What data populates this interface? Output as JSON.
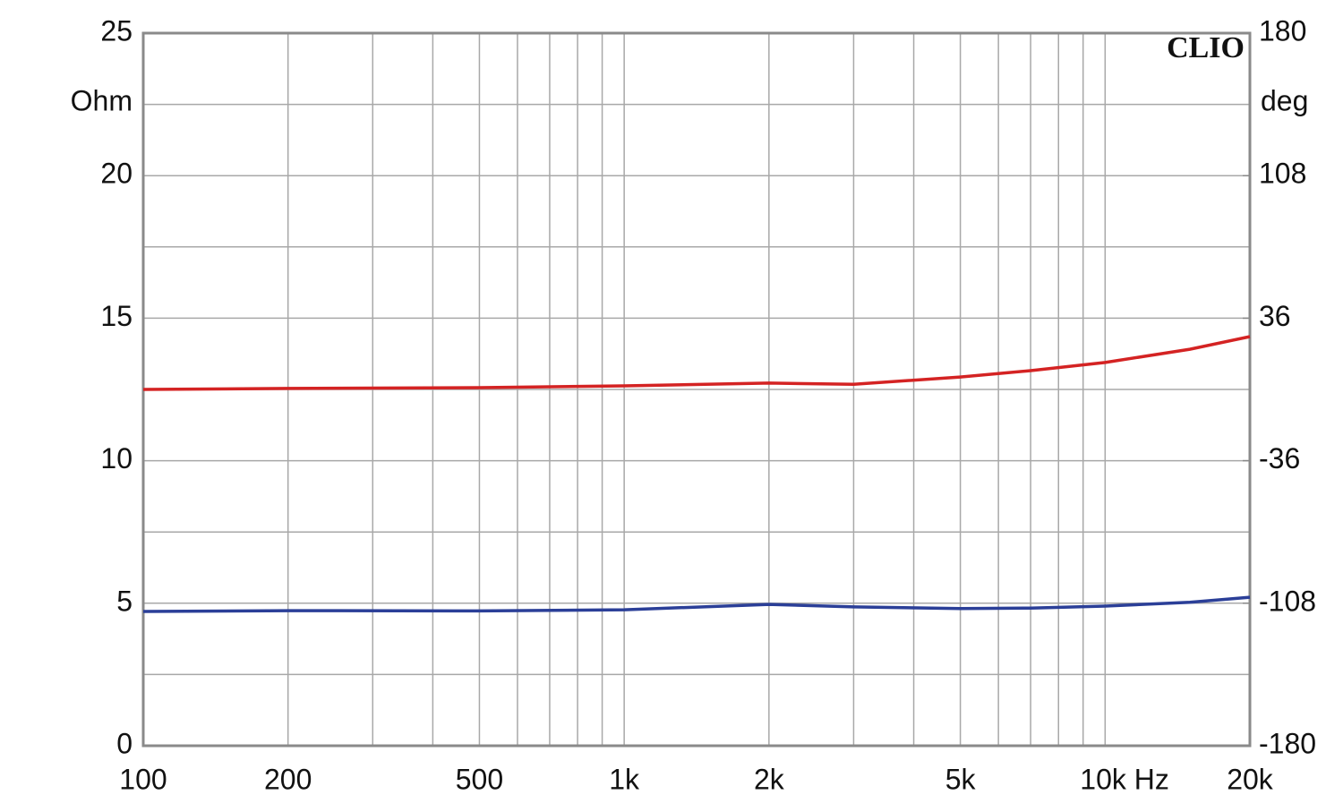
{
  "chart_data": {
    "type": "line",
    "y_label": "Ohm",
    "y2_label": "deg",
    "watermark": "CLIO",
    "x": [
      100,
      200,
      500,
      1000,
      2000,
      3000,
      5000,
      7000,
      10000,
      15000,
      20000
    ],
    "series": [
      {
        "color": "#d42323",
        "axis": "y2",
        "values": [
          0,
          0.5,
          0.9,
          1.8,
          3.2,
          2.6,
          6.3,
          9.5,
          13.6,
          20.3,
          26.7
        ]
      },
      {
        "color": "#2b3f98",
        "axis": "y",
        "values": [
          4.71,
          4.74,
          4.73,
          4.77,
          4.96,
          4.87,
          4.81,
          4.83,
          4.9,
          5.03,
          5.21
        ]
      }
    ],
    "xlim": [
      100,
      20000
    ],
    "log_x": true,
    "xticks": [
      100,
      200,
      500,
      {
        "value": 1000,
        "label": "1k"
      },
      {
        "value": 2000,
        "label": "2k"
      },
      {
        "value": 5000,
        "label": "5k"
      },
      {
        "value": 10000,
        "label": "10k Hz"
      },
      {
        "value": 20000,
        "label": "20k"
      }
    ],
    "x_minor_grid": [
      300,
      400,
      600,
      700,
      800,
      900,
      3000,
      4000,
      6000,
      7000,
      8000,
      9000
    ],
    "ylim": [
      0,
      25
    ],
    "yticks": [
      0,
      5,
      10,
      15,
      20,
      25
    ],
    "y_minor_grid": [
      2.5,
      7.5,
      12.5,
      17.5,
      22.5
    ],
    "y2lim": [
      -180,
      180
    ],
    "y2ticks": [
      -180,
      -108,
      -36,
      36,
      108,
      180
    ],
    "grid": true
  }
}
